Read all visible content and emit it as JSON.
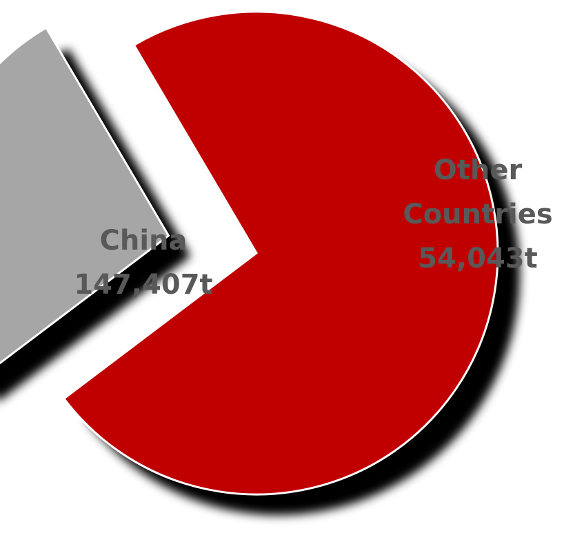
{
  "chart_data": {
    "type": "pie",
    "title": "",
    "unit": "t",
    "slices": [
      {
        "name": "China",
        "value": 147407,
        "value_label": "147,407t",
        "color": "#c00000"
      },
      {
        "name": "Other Countries",
        "value": 54043,
        "value_label": "54,043t",
        "color": "#a6a6a6"
      }
    ],
    "exploded": true,
    "shadow": true,
    "data_labels": "inside",
    "legend": "none",
    "label_color": "#595959"
  }
}
